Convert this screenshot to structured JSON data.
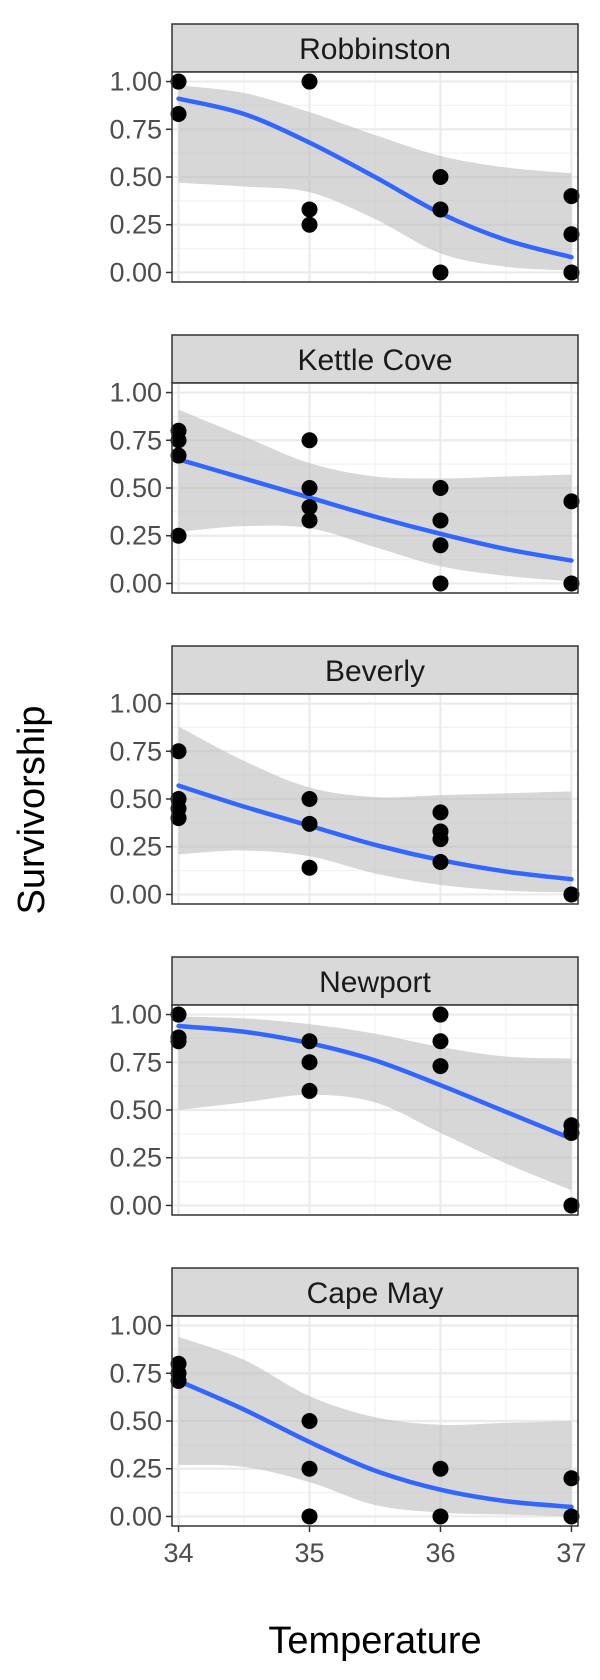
{
  "chart_data": {
    "type": "scatter",
    "xlabel": "Temperature",
    "ylabel": "Survivorship",
    "xlim": [
      33.95,
      37.05
    ],
    "ylim": [
      -0.05,
      1.05
    ],
    "x_ticks": [
      "34",
      "35",
      "36",
      "37"
    ],
    "y_ticks": [
      "0.00",
      "0.25",
      "0.50",
      "0.75",
      "1.00"
    ],
    "grid": true,
    "colors": {
      "points": "#000000",
      "fit_line": "#3366FF",
      "ribbon": "#bdbdbd",
      "strip_bg": "#d9d9d9",
      "grid": "#ebebeb"
    },
    "facets": [
      {
        "name": "Robbinston",
        "points": [
          [
            34,
            1.0
          ],
          [
            34,
            0.83
          ],
          [
            35,
            1.0
          ],
          [
            35,
            0.33
          ],
          [
            35,
            0.25
          ],
          [
            36,
            0.5
          ],
          [
            36,
            0.33
          ],
          [
            36,
            0.0
          ],
          [
            37,
            0.4
          ],
          [
            37,
            0.2
          ],
          [
            37,
            0.0
          ]
        ],
        "fit": [
          [
            34,
            0.91
          ],
          [
            34.5,
            0.83
          ],
          [
            35,
            0.68
          ],
          [
            35.5,
            0.5
          ],
          [
            36,
            0.31
          ],
          [
            36.5,
            0.17
          ],
          [
            37,
            0.08
          ]
        ],
        "ci_upper": [
          [
            34,
            0.98
          ],
          [
            34.5,
            0.94
          ],
          [
            35,
            0.84
          ],
          [
            35.5,
            0.72
          ],
          [
            36,
            0.61
          ],
          [
            36.5,
            0.55
          ],
          [
            37,
            0.52
          ]
        ],
        "ci_lower": [
          [
            34,
            0.47
          ],
          [
            34.5,
            0.45
          ],
          [
            35,
            0.42
          ],
          [
            35.5,
            0.28
          ],
          [
            36,
            0.1
          ],
          [
            36.5,
            0.03
          ],
          [
            37,
            0.01
          ]
        ]
      },
      {
        "name": "Kettle Cove",
        "points": [
          [
            34,
            0.8
          ],
          [
            34,
            0.75
          ],
          [
            34,
            0.67
          ],
          [
            34,
            0.25
          ],
          [
            35,
            0.75
          ],
          [
            35,
            0.5
          ],
          [
            35,
            0.4
          ],
          [
            35,
            0.33
          ],
          [
            36,
            0.5
          ],
          [
            36,
            0.33
          ],
          [
            36,
            0.2
          ],
          [
            36,
            0.0
          ],
          [
            37,
            0.43
          ],
          [
            37,
            0.0
          ]
        ],
        "fit": [
          [
            34,
            0.65
          ],
          [
            34.5,
            0.55
          ],
          [
            35,
            0.45
          ],
          [
            35.5,
            0.35
          ],
          [
            36,
            0.26
          ],
          [
            36.5,
            0.18
          ],
          [
            37,
            0.12
          ]
        ],
        "ci_upper": [
          [
            34,
            0.91
          ],
          [
            34.5,
            0.77
          ],
          [
            35,
            0.63
          ],
          [
            35.5,
            0.56
          ],
          [
            36,
            0.55
          ],
          [
            36.5,
            0.56
          ],
          [
            37,
            0.57
          ]
        ],
        "ci_lower": [
          [
            34,
            0.27
          ],
          [
            34.5,
            0.3
          ],
          [
            35,
            0.29
          ],
          [
            35.5,
            0.19
          ],
          [
            36,
            0.09
          ],
          [
            36.5,
            0.04
          ],
          [
            37,
            0.01
          ]
        ]
      },
      {
        "name": "Beverly",
        "points": [
          [
            34,
            0.75
          ],
          [
            34,
            0.5
          ],
          [
            34,
            0.45
          ],
          [
            34,
            0.4
          ],
          [
            35,
            0.5
          ],
          [
            35,
            0.37
          ],
          [
            35,
            0.14
          ],
          [
            36,
            0.43
          ],
          [
            36,
            0.33
          ],
          [
            36,
            0.29
          ],
          [
            36,
            0.17
          ],
          [
            37,
            0.0
          ]
        ],
        "fit": [
          [
            34,
            0.57
          ],
          [
            34.5,
            0.46
          ],
          [
            35,
            0.36
          ],
          [
            35.5,
            0.26
          ],
          [
            36,
            0.18
          ],
          [
            36.5,
            0.12
          ],
          [
            37,
            0.08
          ]
        ],
        "ci_upper": [
          [
            34,
            0.88
          ],
          [
            34.5,
            0.7
          ],
          [
            35,
            0.56
          ],
          [
            35.5,
            0.51
          ],
          [
            36,
            0.52
          ],
          [
            36.5,
            0.53
          ],
          [
            37,
            0.54
          ]
        ],
        "ci_lower": [
          [
            34,
            0.21
          ],
          [
            34.5,
            0.23
          ],
          [
            35,
            0.2
          ],
          [
            35.5,
            0.11
          ],
          [
            36,
            0.05
          ],
          [
            36.5,
            0.02
          ],
          [
            37,
            0.01
          ]
        ]
      },
      {
        "name": "Newport",
        "points": [
          [
            34,
            1.0
          ],
          [
            34,
            0.88
          ],
          [
            34,
            0.86
          ],
          [
            35,
            0.86
          ],
          [
            35,
            0.75
          ],
          [
            35,
            0.6
          ],
          [
            36,
            1.0
          ],
          [
            36,
            0.86
          ],
          [
            36,
            0.73
          ],
          [
            37,
            0.42
          ],
          [
            37,
            0.38
          ],
          [
            37,
            0.0
          ]
        ],
        "fit": [
          [
            34,
            0.94
          ],
          [
            34.5,
            0.91
          ],
          [
            35,
            0.85
          ],
          [
            35.5,
            0.76
          ],
          [
            36,
            0.63
          ],
          [
            36.5,
            0.49
          ],
          [
            37,
            0.35
          ]
        ],
        "ci_upper": [
          [
            34,
            0.99
          ],
          [
            34.5,
            0.98
          ],
          [
            35,
            0.95
          ],
          [
            35.5,
            0.9
          ],
          [
            36,
            0.83
          ],
          [
            36.5,
            0.78
          ],
          [
            37,
            0.77
          ]
        ],
        "ci_lower": [
          [
            34,
            0.5
          ],
          [
            34.5,
            0.54
          ],
          [
            35,
            0.58
          ],
          [
            35.5,
            0.54
          ],
          [
            36,
            0.38
          ],
          [
            36.5,
            0.22
          ],
          [
            37,
            0.08
          ]
        ]
      },
      {
        "name": "Cape May",
        "points": [
          [
            34,
            0.8
          ],
          [
            34,
            0.75
          ],
          [
            34,
            0.71
          ],
          [
            35,
            0.5
          ],
          [
            35,
            0.25
          ],
          [
            35,
            0.0
          ],
          [
            36,
            0.25
          ],
          [
            36,
            0.0
          ],
          [
            37,
            0.2
          ],
          [
            37,
            0.0
          ]
        ],
        "fit": [
          [
            34,
            0.71
          ],
          [
            34.5,
            0.56
          ],
          [
            35,
            0.39
          ],
          [
            35.5,
            0.24
          ],
          [
            36,
            0.14
          ],
          [
            36.5,
            0.08
          ],
          [
            37,
            0.05
          ]
        ],
        "ci_upper": [
          [
            34,
            0.94
          ],
          [
            34.5,
            0.82
          ],
          [
            35,
            0.63
          ],
          [
            35.5,
            0.52
          ],
          [
            36,
            0.48
          ],
          [
            36.5,
            0.49
          ],
          [
            37,
            0.5
          ]
        ],
        "ci_lower": [
          [
            34,
            0.27
          ],
          [
            34.5,
            0.26
          ],
          [
            35,
            0.18
          ],
          [
            35.5,
            0.06
          ],
          [
            36,
            0.02
          ],
          [
            36.5,
            0.01
          ],
          [
            37,
            0.0
          ]
        ]
      }
    ]
  }
}
